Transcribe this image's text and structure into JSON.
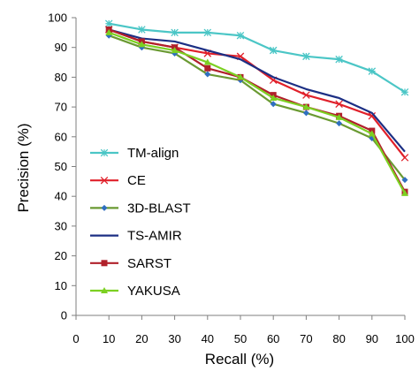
{
  "chart_data": {
    "type": "line",
    "title": "",
    "xlabel": "Recall (%)",
    "ylabel": "Precision (%)",
    "xlim": [
      0,
      100
    ],
    "ylim": [
      0,
      100
    ],
    "xticks": [
      0,
      10,
      20,
      30,
      40,
      50,
      60,
      70,
      80,
      90,
      100
    ],
    "yticks": [
      0,
      10,
      20,
      30,
      40,
      50,
      60,
      70,
      80,
      90,
      100
    ],
    "grid": false,
    "legend_position": "lower-left",
    "x": [
      10,
      20,
      30,
      40,
      50,
      60,
      70,
      80,
      90,
      100
    ],
    "series": [
      {
        "name": "TM-align",
        "color": "#4bc6c6",
        "marker": "asterisk",
        "values": [
          98,
          96,
          95,
          95,
          94,
          89,
          87,
          86,
          82,
          75
        ]
      },
      {
        "name": "CE",
        "color": "#e0202a",
        "marker": "x",
        "values": [
          96,
          92,
          90,
          88,
          87,
          79,
          74,
          71,
          67,
          53
        ]
      },
      {
        "name": "3D-BLAST",
        "color": "#6a9a32",
        "marker": "diamond",
        "values": [
          94,
          90,
          88,
          81,
          79,
          71,
          68,
          64.5,
          59.5,
          45.5
        ]
      },
      {
        "name": "TS-AMIR",
        "color": "#1c2f84",
        "marker": "none",
        "values": [
          96,
          93,
          92,
          89,
          86,
          80,
          76,
          73,
          68,
          55
        ]
      },
      {
        "name": "SARST",
        "color": "#b0202a",
        "marker": "square",
        "values": [
          96,
          92,
          90,
          83,
          80,
          74,
          70,
          67,
          62,
          41.5
        ]
      },
      {
        "name": "YAKUSA",
        "color": "#7cd022",
        "marker": "triangle",
        "values": [
          95,
          91,
          89,
          85,
          80,
          73,
          70,
          66.5,
          61,
          41
        ]
      }
    ]
  }
}
